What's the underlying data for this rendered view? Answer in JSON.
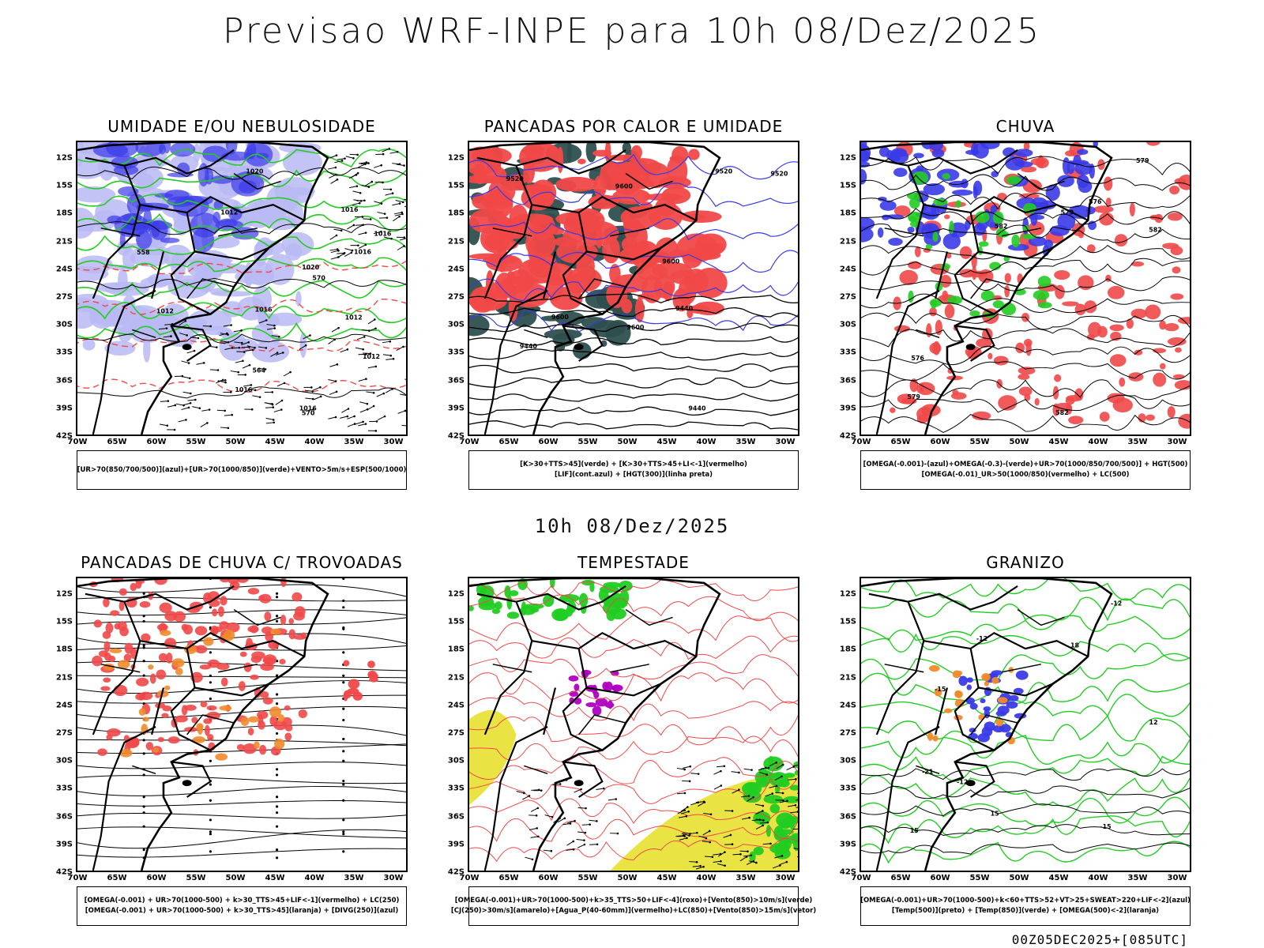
{
  "title": "Previsao WRF-INPE  para 10h 08/Dez/2025",
  "mid_title": "10h 08/Dez/2025",
  "footer": "00Z05DEC2025+[085UTC]",
  "axes": {
    "lat": [
      "12S",
      "15S",
      "18S",
      "21S",
      "24S",
      "27S",
      "30S",
      "33S",
      "36S",
      "39S",
      "42S"
    ],
    "lon": [
      "70W",
      "65W",
      "60W",
      "55W",
      "50W",
      "45W",
      "40W",
      "35W",
      "30W"
    ]
  },
  "colors": {
    "blue": "#3a3ae8",
    "light_blue": "#b9b9f5",
    "green": "#22cc22",
    "red": "#f04848",
    "dark_teal": "#2e4f4f",
    "orange": "#f08a2a",
    "yellow": "#e8e030",
    "purple": "#b000c0"
  },
  "panels": [
    {
      "id": "umidade",
      "title": "UMIDADE E/OU NEBULOSIDADE",
      "legend": [
        "[UR>70(850/700/500)](azul)+[UR>70(1000/850)](verde)+VENTO>5m/s+ESP(500/1000)"
      ],
      "labels": [
        "1012",
        "1012",
        "1016",
        "1016",
        "1012",
        "1016",
        "1016",
        "1012",
        "1016",
        "1016",
        "1020",
        "1020",
        "570",
        "570",
        "564",
        "558"
      ]
    },
    {
      "id": "pancadas-calor",
      "title": "PANCADAS POR CALOR E UMIDADE",
      "legend": [
        "[K>30+TTS>45](verde)  +  [K>30+TTS>45+LI<-1](vermelho)",
        "[LIF](cont.azul)  +  [HGT(300)](linha preta)"
      ],
      "labels": [
        "9600",
        "9600",
        "9600",
        "9600",
        "9520",
        "9520",
        "9520",
        "9440",
        "9440",
        "9440"
      ]
    },
    {
      "id": "chuva",
      "title": "CHUVA",
      "legend": [
        "[OMEGA(-0.001)-(azul)+OMEGA(-0.3)-(verde)+UR>70(1000/850/700/500)]  +  HGT(500)",
        "[OMEGA(-0.01)_UR>50(1000/850)(vermelho)  +  LC(500)"
      ],
      "labels": [
        "582",
        "582",
        "582",
        "579",
        "579",
        "579",
        "576",
        "576"
      ]
    },
    {
      "id": "pancadas-trovoadas",
      "title": "PANCADAS DE CHUVA C/ TROVOADAS",
      "legend": [
        "[OMEGA(-0.001)  +  UR>70(1000-500)  +  k>30_TTS>45+LIF<-1](vermelho)  +  LC(250)",
        "[OMEGA(-0.001)  +  UR>70(1000-500)  +  k>30_TTS>45](laranja)  +  [DIVG(250)](azul)"
      ],
      "labels": []
    },
    {
      "id": "tempestade",
      "title": "TEMPESTADE",
      "legend": [
        "[OMEGA(-0.001)+UR>70(1000-500)+k>35_TTS>50+LIF<-4](roxo)+[Vento(850)>10m/s](verde)",
        "[CJ(250)>30m/s](amarelo)+[Agua_P(40-60mm)](vermelho)+LC(850)+[Vento(850)>15m/s](vetor)"
      ],
      "labels": []
    },
    {
      "id": "granizo",
      "title": "GRANIZO",
      "legend": [
        "[OMEGA(-0.001)+UR>70(1000-500)+k<60+TTS>52+VT>25+SWEAT>220+LIF<-2](azul)",
        "[Temp(500)](preto)  +  [Temp(850)](verde)  +  [OMEGA(500)<-2](laranja)"
      ],
      "labels": [
        "-12",
        "-12",
        "-12",
        "-15",
        "-15",
        "-21",
        "12",
        "15",
        "15",
        "18"
      ]
    }
  ]
}
